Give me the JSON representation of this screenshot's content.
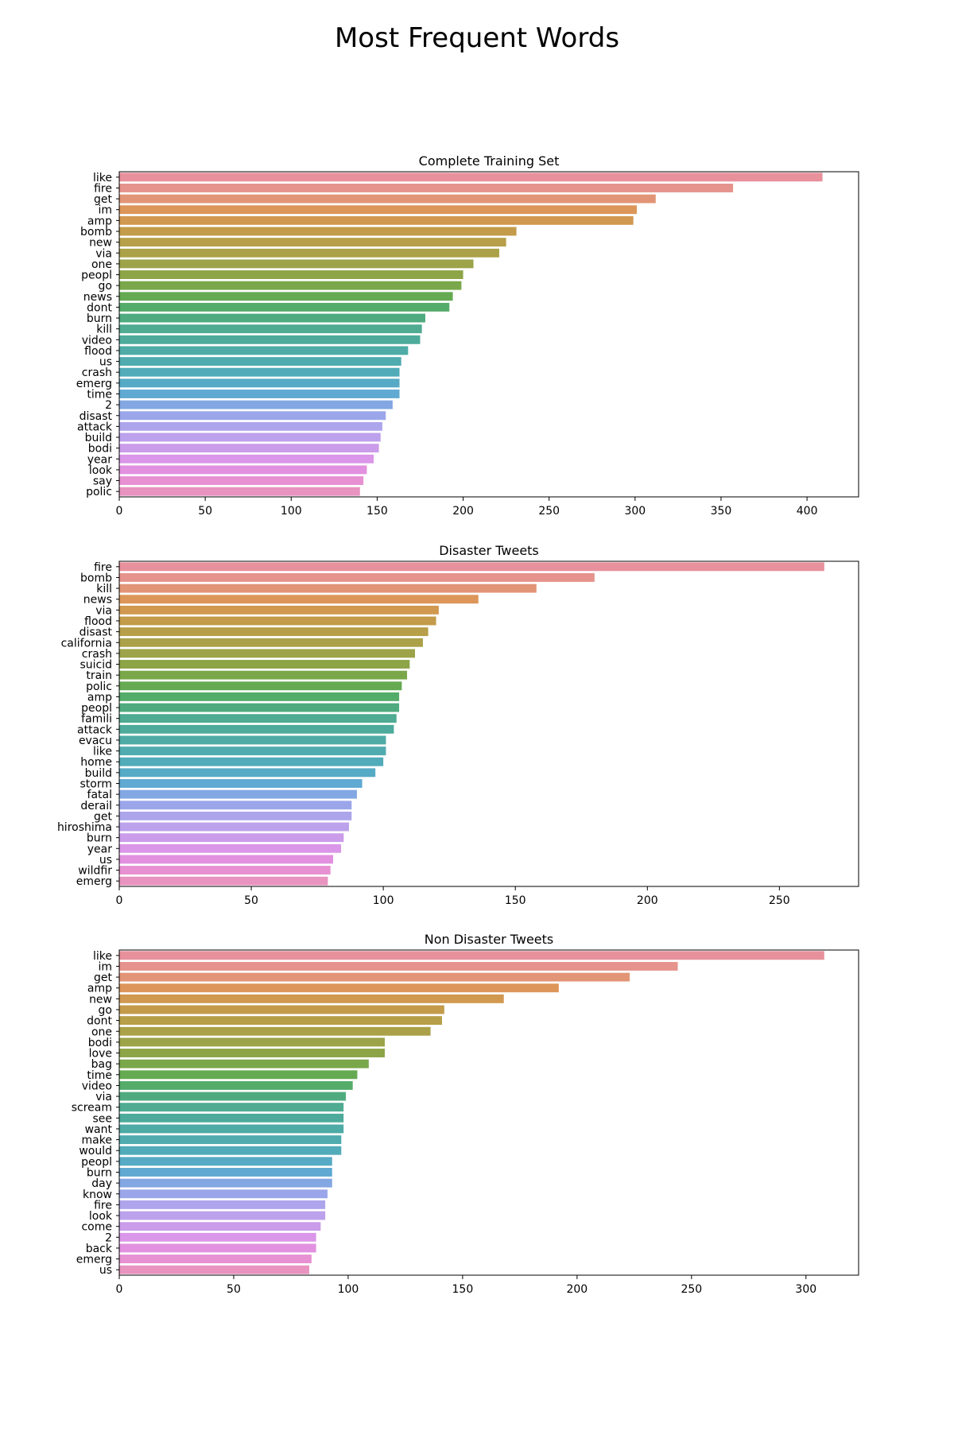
{
  "figure": {
    "title": "Most Frequent Words"
  },
  "chart_data": [
    {
      "type": "bar",
      "orientation": "horizontal",
      "title": "Complete Training Set",
      "xlabel": "",
      "ylabel": "",
      "xlim": [
        0,
        430
      ],
      "xticks": [
        0,
        50,
        100,
        150,
        200,
        250,
        300,
        350,
        400
      ],
      "categories": [
        "like",
        "fire",
        "get",
        "im",
        "amp",
        "bomb",
        "new",
        "via",
        "one",
        "peopl",
        "go",
        "news",
        "dont",
        "burn",
        "kill",
        "video",
        "flood",
        "us",
        "crash",
        "emerg",
        "time",
        "2",
        "disast",
        "attack",
        "build",
        "bodi",
        "year",
        "look",
        "say",
        "polic"
      ],
      "values": [
        409,
        357,
        312,
        301,
        299,
        231,
        225,
        221,
        206,
        200,
        199,
        194,
        192,
        178,
        176,
        175,
        168,
        164,
        163,
        163,
        163,
        159,
        155,
        153,
        152,
        151,
        148,
        144,
        142,
        140
      ],
      "grid": false
    },
    {
      "type": "bar",
      "orientation": "horizontal",
      "title": "Disaster Tweets",
      "xlabel": "",
      "ylabel": "",
      "xlim": [
        0,
        280
      ],
      "xticks": [
        0,
        50,
        100,
        150,
        200,
        250
      ],
      "categories": [
        "fire",
        "bomb",
        "kill",
        "news",
        "via",
        "flood",
        "disast",
        "california",
        "crash",
        "suicid",
        "train",
        "polic",
        "amp",
        "peopl",
        "famili",
        "attack",
        "evacu",
        "like",
        "home",
        "build",
        "storm",
        "fatal",
        "derail",
        "get",
        "hiroshima",
        "burn",
        "year",
        "us",
        "wildfir",
        "emerg"
      ],
      "values": [
        267,
        180,
        158,
        136,
        121,
        120,
        117,
        115,
        112,
        110,
        109,
        107,
        106,
        106,
        105,
        104,
        101,
        101,
        100,
        97,
        92,
        90,
        88,
        88,
        87,
        85,
        84,
        81,
        80,
        79
      ],
      "grid": false
    },
    {
      "type": "bar",
      "orientation": "horizontal",
      "title": "Non Disaster Tweets",
      "xlabel": "",
      "ylabel": "",
      "xlim": [
        0,
        323
      ],
      "xticks": [
        0,
        50,
        100,
        150,
        200,
        250,
        300
      ],
      "categories": [
        "like",
        "im",
        "get",
        "amp",
        "new",
        "go",
        "dont",
        "one",
        "bodi",
        "love",
        "bag",
        "time",
        "video",
        "via",
        "scream",
        "see",
        "want",
        "make",
        "would",
        "peopl",
        "burn",
        "day",
        "know",
        "fire",
        "look",
        "come",
        "2",
        "back",
        "emerg",
        "us"
      ],
      "values": [
        308,
        244,
        223,
        192,
        168,
        142,
        141,
        136,
        116,
        116,
        109,
        104,
        102,
        99,
        98,
        98,
        98,
        97,
        97,
        93,
        93,
        93,
        91,
        90,
        90,
        88,
        86,
        86,
        84,
        83
      ],
      "grid": false
    }
  ],
  "palette": [
    "#e8919c",
    "#e49483",
    "#dd9658",
    "#c99a4b",
    "#b59f48",
    "#a2a348",
    "#8ba447",
    "#6ba94b",
    "#50ac6f",
    "#4fab8e",
    "#4eab9e",
    "#4fabad",
    "#53abbc",
    "#5aa9d0",
    "#8fa7e8",
    "#aba5ec",
    "#c2a0ec",
    "#da96e8",
    "#e68fdc",
    "#e893c0"
  ]
}
